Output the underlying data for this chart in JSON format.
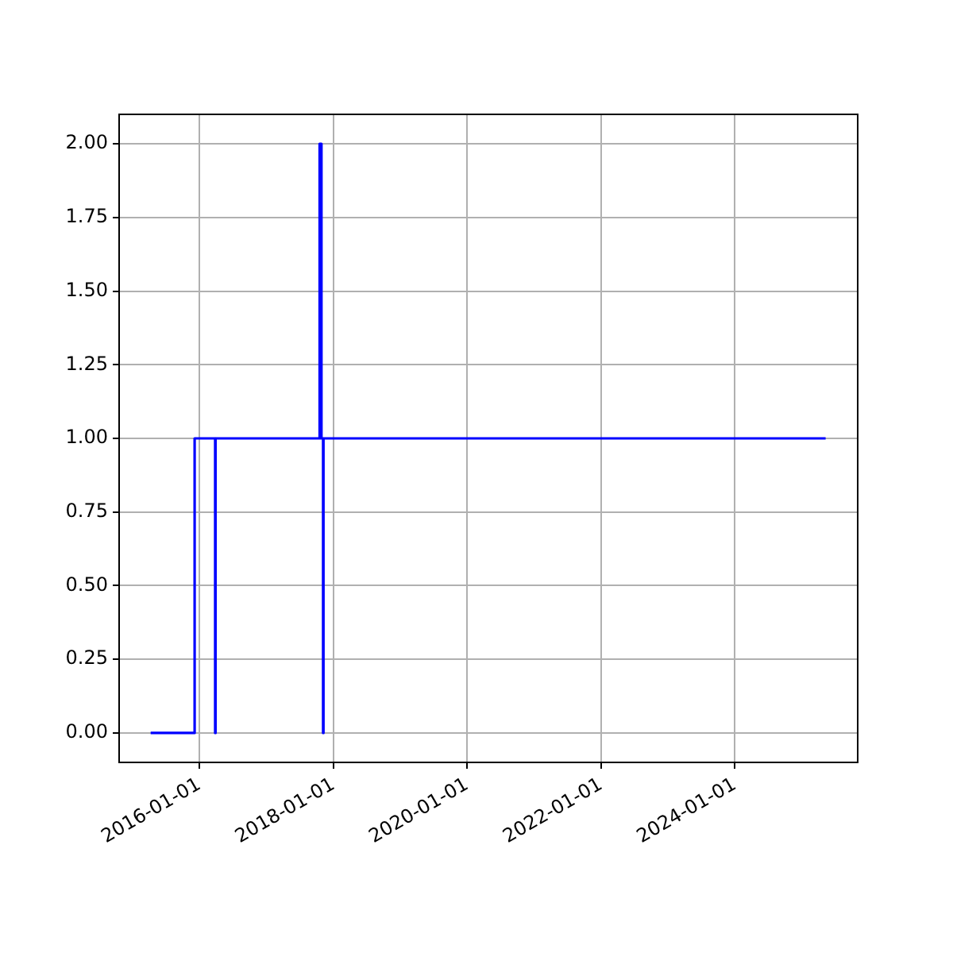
{
  "chart_data": {
    "type": "step",
    "x": [
      "2015-04-10",
      "2015-12-06",
      "2016-03-27",
      "2016-03-29",
      "2017-10-18",
      "2017-10-28",
      "2017-11-06",
      "2017-11-08",
      "2025-05-10"
    ],
    "series": [
      {
        "color": "#0000ff",
        "values": [
          0,
          1,
          0,
          1,
          2,
          1,
          0,
          1,
          1
        ]
      }
    ],
    "xlim": [
      "2014-10-20",
      "2025-11-01"
    ],
    "xticks": [
      "2016-01-01",
      "2018-01-01",
      "2020-01-01",
      "2022-01-01",
      "2024-01-01"
    ],
    "ylim": [
      -0.1,
      2.1
    ],
    "yticks": [
      {
        "value": 0,
        "label": "0.00"
      },
      {
        "value": 0.25,
        "label": "0.25"
      },
      {
        "value": 0.5,
        "label": "0.50"
      },
      {
        "value": 0.75,
        "label": "0.75"
      },
      {
        "value": 1,
        "label": "1.00"
      },
      {
        "value": 1.25,
        "label": "1.25"
      },
      {
        "value": 1.5,
        "label": "1.50"
      },
      {
        "value": 1.75,
        "label": "1.75"
      },
      {
        "value": 2,
        "label": "2.00"
      }
    ],
    "grid": true
  }
}
